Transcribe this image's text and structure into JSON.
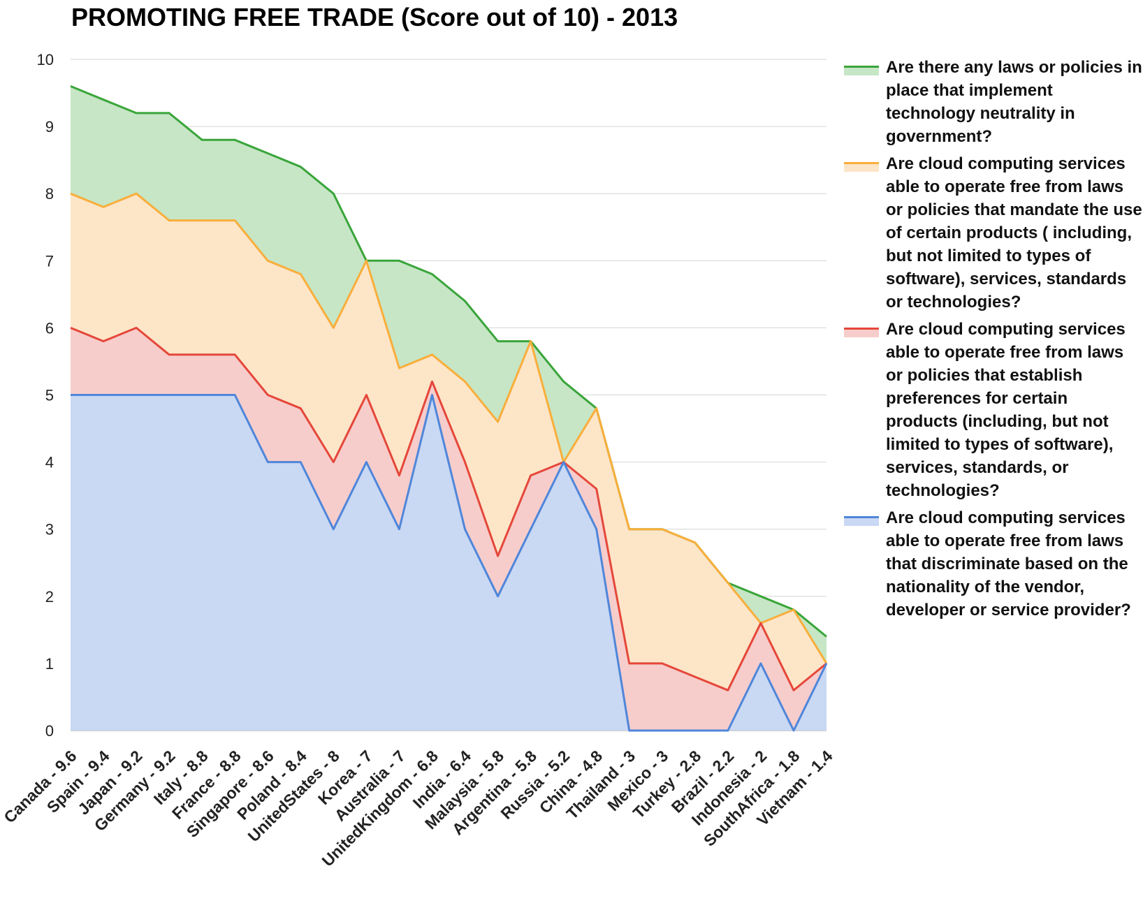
{
  "chart_data": {
    "type": "area",
    "title": "PROMOTING FREE TRADE (Score out of 10) - 2013",
    "ylim": [
      0,
      10
    ],
    "yticks": [
      0,
      1,
      2,
      3,
      4,
      5,
      6,
      7,
      8,
      9,
      10
    ],
    "grid": true,
    "legend_position": "right",
    "stacked": true,
    "categories": [
      "Canada - 9.6",
      "Spain - 9.4",
      "Japan - 9.2",
      "Germany - 9.2",
      "Italy - 8.8",
      "France - 8.8",
      "Singapore - 8.6",
      "Poland - 8.4",
      "UnitedStates - 8",
      "Korea - 7",
      "Australia - 7",
      "UnitedKingdom - 6.8",
      "India - 6.4",
      "Malaysia - 5.8",
      "Argentina - 5.8",
      "Russia - 5.2",
      "China - 4.8",
      "Thailand - 3",
      "Mexico - 3",
      "Turkey - 2.8",
      "Brazil - 2.2",
      "Indonesia - 2",
      "SouthAfrica - 1.8",
      "Vietnam - 1.4"
    ],
    "series": [
      {
        "name": "Are there any laws or policies in place that implement technology neutrality in government?",
        "line_color": "#3aa53a",
        "fill_color": "#c6e6c6",
        "cumulative": [
          9.6,
          9.4,
          9.2,
          9.2,
          8.8,
          8.8,
          8.6,
          8.4,
          8.0,
          7.0,
          7.0,
          6.8,
          6.4,
          5.8,
          5.8,
          5.2,
          4.8,
          3.0,
          3.0,
          2.8,
          2.2,
          2.0,
          1.8,
          1.4
        ]
      },
      {
        "name": "Are cloud computing services able to operate free from laws or policies that mandate the use of certain products ( including, but not limited to types of software), services, standards or technologies?",
        "line_color": "#f9ae3b",
        "fill_color": "#fde5c8",
        "cumulative": [
          8.0,
          7.8,
          8.0,
          7.6,
          7.6,
          7.6,
          7.0,
          6.8,
          6.0,
          7.0,
          5.4,
          5.6,
          5.2,
          4.6,
          5.8,
          4.0,
          4.8,
          3.0,
          3.0,
          2.8,
          2.2,
          1.6,
          1.8,
          1.0
        ]
      },
      {
        "name": "Are cloud computing services able to operate free from laws or policies that establish preferences for certain products (including, but not limited to types of software), services, standards, or technologies?",
        "line_color": "#e5473a",
        "fill_color": "#f6cdcb",
        "cumulative": [
          6.0,
          5.8,
          6.0,
          5.6,
          5.6,
          5.6,
          5.0,
          4.8,
          4.0,
          5.0,
          3.8,
          5.2,
          4.0,
          2.6,
          3.8,
          4.0,
          3.6,
          1.0,
          1.0,
          0.8,
          0.6,
          1.6,
          0.6,
          1.0
        ]
      },
      {
        "name": "Are cloud computing services able to operate free from laws that discriminate based on the nationality of the vendor, developer or service provider?",
        "line_color": "#4f86da",
        "fill_color": "#c9d8f3",
        "cumulative": [
          5.0,
          5.0,
          5.0,
          5.0,
          5.0,
          5.0,
          4.0,
          4.0,
          3.0,
          4.0,
          3.0,
          5.0,
          3.0,
          2.0,
          3.0,
          4.0,
          3.0,
          0.0,
          0.0,
          0.0,
          0.0,
          1.0,
          0.0,
          1.0
        ]
      }
    ]
  }
}
